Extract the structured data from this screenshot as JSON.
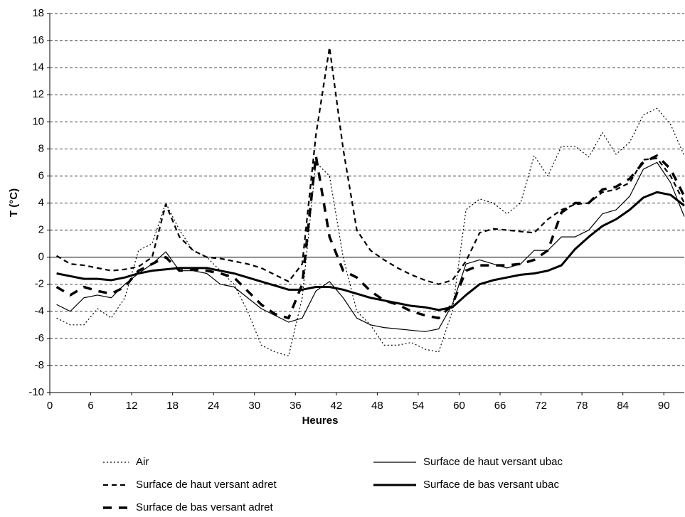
{
  "chart_data": {
    "type": "line",
    "x_label": "Heures",
    "y_label": "T (°C)",
    "xlim": [
      0,
      93
    ],
    "xticks": [
      0,
      6,
      12,
      18,
      24,
      30,
      36,
      42,
      48,
      54,
      60,
      66,
      72,
      78,
      84,
      90
    ],
    "ylim": [
      -10,
      18
    ],
    "yticks": [
      -10,
      -8,
      -6,
      -4,
      -2,
      0,
      2,
      4,
      6,
      8,
      10,
      12,
      14,
      16,
      18
    ],
    "grid": true,
    "legend": "bottom",
    "x": [
      1,
      3,
      5,
      7,
      9,
      11,
      13,
      15,
      17,
      19,
      21,
      23,
      25,
      27,
      29,
      31,
      33,
      35,
      37,
      39,
      41,
      43,
      45,
      47,
      49,
      51,
      53,
      55,
      57,
      59,
      61,
      63,
      65,
      67,
      69,
      71,
      73,
      75,
      77,
      79,
      81,
      83,
      85,
      87,
      89,
      91,
      93
    ],
    "series": [
      {
        "name": "Air",
        "color": "#000000",
        "line_style": "dotted",
        "width": 1.2,
        "values": [
          -4.5,
          -5,
          -5,
          -3.8,
          -4.5,
          -3,
          0.5,
          1,
          4,
          2,
          0.5,
          0,
          -1,
          -2,
          -4,
          -6.5,
          -7,
          -7.3,
          -3,
          7,
          6,
          0,
          -4,
          -5,
          -6.5,
          -6.5,
          -6.3,
          -6.8,
          -7,
          -4,
          3.5,
          4.3,
          4,
          3.2,
          4,
          7.5,
          6,
          8.2,
          8.2,
          7.4,
          9.2,
          7.6,
          8.5,
          10.5,
          11,
          9.8,
          7.5
        ]
      },
      {
        "name": "Surface de haut versant adret",
        "color": "#000000",
        "line_style": "dashed",
        "width": 2.2,
        "values": [
          0.1,
          -0.5,
          -0.6,
          -0.8,
          -1,
          -0.9,
          -0.7,
          0,
          3.9,
          1.5,
          0.5,
          0,
          -0.1,
          -0.3,
          -0.5,
          -0.8,
          -1.3,
          -1.8,
          -0.5,
          9,
          15.5,
          8,
          2,
          0.5,
          -0.2,
          -0.8,
          -1.3,
          -1.7,
          -2,
          -1.7,
          -0.3,
          1.8,
          2.1,
          2,
          1.9,
          1.8,
          2.8,
          3.5,
          3.9,
          4,
          4.8,
          5,
          5.5,
          7.2,
          7.3,
          6,
          4
        ]
      },
      {
        "name": "Surface de bas versant adret",
        "color": "#000000",
        "line_style": "longdash",
        "width": 3.5,
        "values": [
          -2.2,
          -2.8,
          -2.2,
          -2.5,
          -2.7,
          -2.2,
          -1,
          -0.5,
          0,
          -1,
          -0.9,
          -1,
          -1.2,
          -1.5,
          -2.5,
          -3.5,
          -4.2,
          -4.5,
          -2,
          7.5,
          1.5,
          -1,
          -1.5,
          -2.5,
          -3.2,
          -3.5,
          -4,
          -4.3,
          -4.5,
          -3.5,
          -1,
          -0.6,
          -0.6,
          -0.6,
          -0.5,
          -0.2,
          0.5,
          3.3,
          4,
          4,
          5,
          5.2,
          5.8,
          7,
          7.5,
          6.5,
          4.5
        ]
      },
      {
        "name": "Surface de haut versant ubac",
        "color": "#000000",
        "line_style": "solid",
        "width": 1.2,
        "values": [
          -3.5,
          -4,
          -3,
          -2.8,
          -3,
          -2,
          -1.2,
          -0.5,
          0.4,
          -1,
          -1,
          -1.2,
          -2,
          -2.2,
          -3,
          -3.8,
          -4.3,
          -4.8,
          -4.5,
          -2.5,
          -1.8,
          -3,
          -4.5,
          -5,
          -5.2,
          -5.3,
          -5.4,
          -5.5,
          -5.3,
          -3.5,
          -0.5,
          -0.2,
          -0.5,
          -0.8,
          -0.5,
          0.5,
          0.5,
          1.5,
          1.5,
          2,
          3.2,
          3.5,
          4.5,
          6.5,
          7,
          5.5,
          3
        ]
      },
      {
        "name": "Surface de bas versant ubac",
        "color": "#000000",
        "line_style": "solid",
        "width": 3,
        "values": [
          -1.2,
          -1.4,
          -1.6,
          -1.6,
          -1.7,
          -1.5,
          -1.2,
          -1,
          -0.9,
          -0.8,
          -0.8,
          -0.8,
          -1,
          -1.2,
          -1.5,
          -1.8,
          -2.1,
          -2.4,
          -2.4,
          -2.2,
          -2.2,
          -2.4,
          -2.7,
          -3,
          -3.2,
          -3.4,
          -3.6,
          -3.7,
          -3.9,
          -3.7,
          -2.8,
          -2,
          -1.7,
          -1.5,
          -1.3,
          -1.2,
          -1,
          -0.6,
          0.6,
          1.5,
          2.3,
          2.8,
          3.5,
          4.4,
          4.8,
          4.6,
          3.8
        ]
      }
    ]
  }
}
